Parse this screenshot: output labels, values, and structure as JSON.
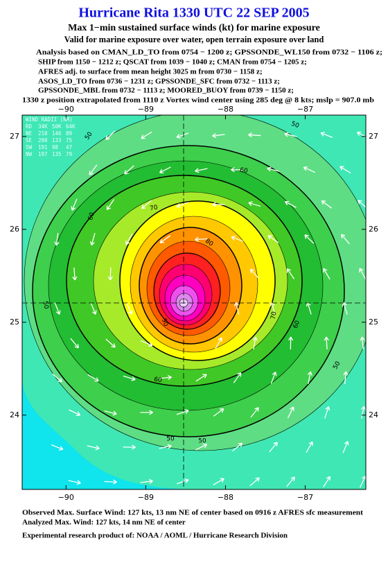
{
  "header": {
    "title": "Hurricane Rita 1330 UTC 22 SEP 2005",
    "subtitle": "Max 1−min sustained surface winds (kt) for marine exposure",
    "validity": "Valid for marine exposure over water, open terrain exposure over land",
    "analysis_sources": [
      "Analysis based on  CMAN_LD_TO from 0754 − 1200 z;  GPSSONDE_WL150 from 0732 − 1106 z;",
      "SHIP from 1150 − 1212 z;  QSCAT from 1039 − 1040 z;  CMAN from 0754 − 1205 z;",
      "AFRES adj. to surface from mean height 3025 m from 0730 − 1158 z;",
      "ASOS_LD_TO from 0736 − 1231 z;  GPSSONDE_SFC from 0732 − 1113 z;",
      "GPSSONDE_MBL from 0732 − 1113 z;  MOORED_BUOY from 0739 − 1150 z;"
    ],
    "position_note": "1330 z position extrapolated from 1110 z Vortex wind center using 285 deg @ 8 kts; mslp = 907.0 mb"
  },
  "map": {
    "xlim": [
      -90.55,
      -86.24
    ],
    "ylim": [
      23.2,
      27.23
    ],
    "xticks": [
      {
        "value": -90,
        "label": "−90"
      },
      {
        "value": -89,
        "label": "−89"
      },
      {
        "value": -88,
        "label": "−88"
      },
      {
        "value": -87,
        "label": "−87"
      }
    ],
    "yticks": [
      24,
      25,
      26,
      27
    ],
    "contour_labels": [
      50,
      50,
      50,
      50,
      50,
      50,
      60,
      60,
      60,
      60,
      70,
      70,
      80,
      90
    ],
    "wind_radii": {
      "title": "WIND RADII (NM)",
      "header": [
        "RD",
        "34K",
        "50K",
        "64K"
      ],
      "rows": [
        [
          "NE",
          210,
          146,
          89
        ],
        [
          "SE",
          200,
          133,
          75
        ],
        [
          "SW",
          191,
          98,
          47
        ],
        [
          "NW",
          197,
          135,
          79
        ]
      ]
    }
  },
  "footer": {
    "observed": "Observed Max. Surface Wind: 127 kts, 13 nm NE of center based on 0916 z AFRES sfc measurement",
    "analyzed": "Analyzed Max. Wind: 127 kts, 14 nm NE of center",
    "credit": "Experimental research product of:  NOAA / AOML / Hurricane Research Division"
  }
}
